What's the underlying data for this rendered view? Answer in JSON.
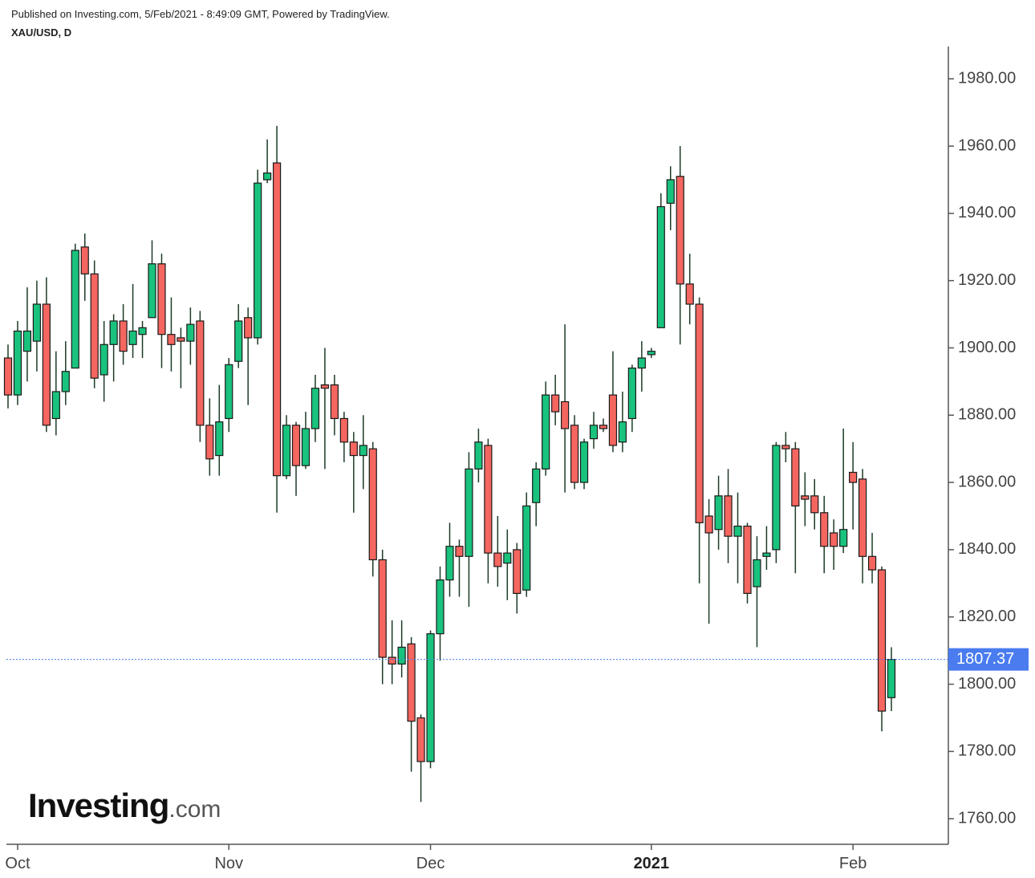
{
  "chart_data": {
    "type": "candlestick",
    "published": "Published on Investing.com, 5/Feb/2021 - 8:49:09 GMT, Powered by TradingView.",
    "symbol": "XAU/USD, D",
    "logo": {
      "name": "Investing",
      "suffix": ".com"
    },
    "categories": [
      null,
      "Oct",
      null,
      null,
      null,
      null,
      null,
      null,
      null,
      null,
      null,
      null,
      null,
      null,
      null,
      null,
      null,
      null,
      null,
      null,
      null,
      null,
      null,
      "Nov",
      null,
      null,
      null,
      null,
      null,
      null,
      null,
      null,
      null,
      null,
      null,
      null,
      null,
      null,
      null,
      null,
      null,
      null,
      null,
      null,
      "Dec",
      null,
      null,
      null,
      null,
      null,
      null,
      null,
      null,
      null,
      null,
      null,
      null,
      null,
      null,
      null,
      null,
      null,
      null,
      null,
      null,
      null,
      null,
      "2021",
      null,
      null,
      null,
      null,
      null,
      null,
      null,
      null,
      null,
      null,
      null,
      null,
      null,
      null,
      null,
      null,
      null,
      null,
      null,
      null,
      "Feb",
      null,
      null,
      null,
      null
    ],
    "open": [
      1897,
      1886,
      1899,
      1902,
      1913,
      1879,
      1887,
      1894,
      1930,
      1922,
      1892,
      1901,
      1908,
      1901,
      1904,
      1909,
      1925,
      1904,
      1903,
      1902,
      1908,
      1877,
      1868,
      1879,
      1896,
      1909,
      1903,
      1950,
      1955,
      1862,
      1877,
      1865,
      1876,
      1889,
      1889,
      1879,
      1872,
      1868,
      1870,
      1837,
      1808,
      1806,
      1812,
      1790,
      1777,
      1815,
      1831,
      1841,
      1838,
      1864,
      1871,
      1839,
      1836,
      1840,
      1828,
      1854,
      1864,
      1886,
      1884,
      1877,
      1860,
      1873,
      1877,
      1886,
      1872,
      1879,
      1894,
      1898,
      1906,
      1943,
      1951,
      1919,
      1913,
      1850,
      1846,
      1856,
      1844,
      1847,
      1829,
      1838,
      1840,
      1871,
      1870,
      1856,
      1856,
      1851,
      1845,
      1841,
      1863,
      1861,
      1838,
      1834,
      1796
    ],
    "high": [
      1901,
      1908,
      1918,
      1920,
      1921,
      1899,
      1902,
      1931,
      1934,
      1926,
      1908,
      1910,
      1913,
      1919,
      1908,
      1932,
      1928,
      1915,
      1906,
      1912,
      1911,
      1885,
      1889,
      1897,
      1913,
      1912,
      1953,
      1962,
      1966,
      1880,
      1878,
      1881,
      1892,
      1900,
      1892,
      1881,
      1875,
      1880,
      1872,
      1840,
      1819,
      1819,
      1814,
      1791,
      1816,
      1835,
      1848,
      1843,
      1869,
      1876,
      1873,
      1850,
      1846,
      1842,
      1857,
      1866,
      1890,
      1892,
      1907,
      1880,
      1873,
      1881,
      1879,
      1899,
      1887,
      1895,
      1902,
      1900,
      1946,
      1954,
      1960,
      1928,
      1915,
      1855,
      1862,
      1864,
      1857,
      1848,
      1844,
      1847,
      1872,
      1875,
      1872,
      1863,
      1861,
      1856,
      1849,
      1876,
      1872,
      1864,
      1845,
      1835,
      1811
    ],
    "low": [
      1882,
      1883,
      1890,
      1893,
      1875,
      1874,
      1883,
      1894,
      1914,
      1888,
      1884,
      1890,
      1895,
      1897,
      1897,
      1909,
      1894,
      1893,
      1888,
      1895,
      1872,
      1862,
      1862,
      1875,
      1894,
      1883,
      1901,
      1949,
      1851,
      1861,
      1856,
      1864,
      1872,
      1864,
      1874,
      1866,
      1851,
      1858,
      1832,
      1800,
      1800,
      1802,
      1774,
      1765,
      1775,
      1807,
      1826,
      1826,
      1823,
      1860,
      1830,
      1829,
      1825,
      1821,
      1826,
      1847,
      1862,
      1877,
      1857,
      1858,
      1858,
      1870,
      1875,
      1869,
      1869,
      1875,
      1887,
      1897,
      1906,
      1935,
      1901,
      1907,
      1830,
      1818,
      1840,
      1836,
      1830,
      1824,
      1811,
      1834,
      1836,
      1866,
      1833,
      1847,
      1846,
      1833,
      1834,
      1839,
      1846,
      1830,
      1830,
      1786,
      1792
    ],
    "close": [
      1886,
      1905,
      1905,
      1913,
      1877,
      1887,
      1893,
      1929,
      1922,
      1891,
      1901,
      1908,
      1899,
      1905,
      1906,
      1925,
      1904,
      1901,
      1902,
      1907,
      1877,
      1867,
      1878,
      1895,
      1908,
      1903,
      1949,
      1952,
      1862,
      1877,
      1865,
      1876,
      1888,
      1888,
      1879,
      1872,
      1868,
      1871,
      1837,
      1808,
      1806,
      1811,
      1789,
      1777,
      1815,
      1831,
      1841,
      1838,
      1864,
      1872,
      1839,
      1835,
      1839,
      1827,
      1853,
      1864,
      1886,
      1881,
      1876,
      1860,
      1872,
      1877,
      1876,
      1871,
      1878,
      1894,
      1897,
      1899,
      1942,
      1950,
      1919,
      1913,
      1848,
      1845,
      1856,
      1844,
      1847,
      1827,
      1837,
      1839,
      1871,
      1870,
      1853,
      1855,
      1851,
      1841,
      1841,
      1846,
      1860,
      1838,
      1834,
      1792,
      1807.37
    ],
    "last_price": 1807.37,
    "up_color": "#19c37d",
    "down_color": "#f4665f",
    "wick_color": "#1d3b26",
    "price_line_color": "#4a7cf0",
    "ylim": [
      1752.4,
      1989.6
    ],
    "yticks": [
      {
        "value": 1760,
        "label": "1760.00"
      },
      {
        "value": 1780,
        "label": "1780.00"
      },
      {
        "value": 1800,
        "label": "1800.00"
      },
      {
        "value": 1820,
        "label": "1820.00"
      },
      {
        "value": 1840,
        "label": "1840.00"
      },
      {
        "value": 1860,
        "label": "1860.00"
      },
      {
        "value": 1880,
        "label": "1880.00"
      },
      {
        "value": 1900,
        "label": "1900.00"
      },
      {
        "value": 1920,
        "label": "1920.00"
      },
      {
        "value": 1940,
        "label": "1940.00"
      },
      {
        "value": 1960,
        "label": "1960.00"
      },
      {
        "value": 1980,
        "label": "1980.00"
      }
    ]
  }
}
